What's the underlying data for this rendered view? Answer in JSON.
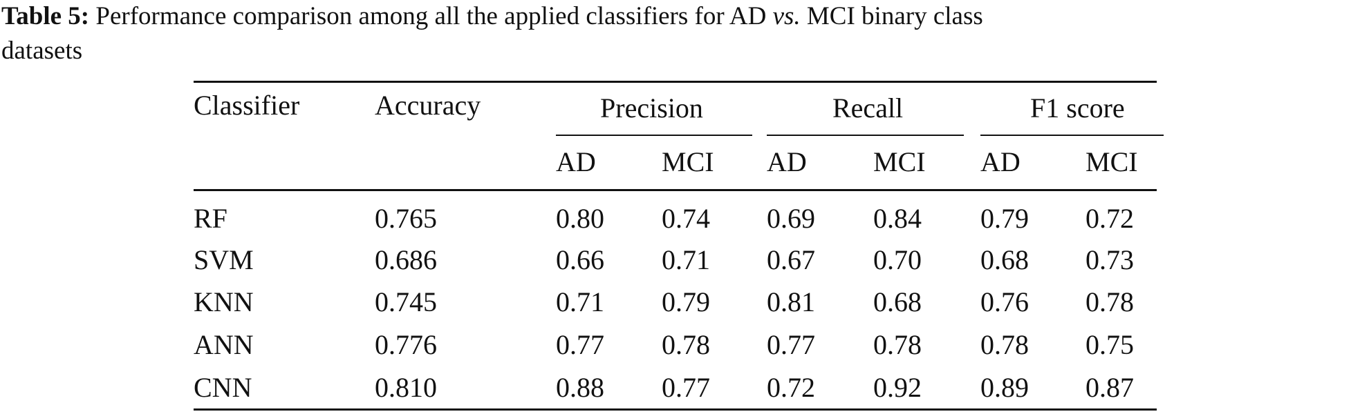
{
  "caption": {
    "label": "Table 5:",
    "text_before": " Performance comparison among all the applied classifiers for AD ",
    "vs": "vs.",
    "text_after": " MCI binary class",
    "line2": "datasets"
  },
  "table": {
    "headers": {
      "classifier": "Classifier",
      "accuracy": "Accuracy",
      "precision": "Precision",
      "recall": "Recall",
      "f1": "F1 score",
      "sub": [
        "AD",
        "MCI",
        "AD",
        "MCI",
        "AD",
        "MCI"
      ]
    },
    "rows": [
      [
        "RF",
        "0.765",
        "0.80",
        "0.74",
        "0.69",
        "0.84",
        "0.79",
        "0.72"
      ],
      [
        "SVM",
        "0.686",
        "0.66",
        "0.71",
        "0.67",
        "0.70",
        "0.68",
        "0.73"
      ],
      [
        "KNN",
        "0.745",
        "0.71",
        "0.79",
        "0.81",
        "0.68",
        "0.76",
        "0.78"
      ],
      [
        "ANN",
        "0.776",
        "0.77",
        "0.78",
        "0.77",
        "0.78",
        "0.78",
        "0.75"
      ],
      [
        "CNN",
        "0.810",
        "0.88",
        "0.77",
        "0.72",
        "0.92",
        "0.89",
        "0.87"
      ]
    ]
  }
}
